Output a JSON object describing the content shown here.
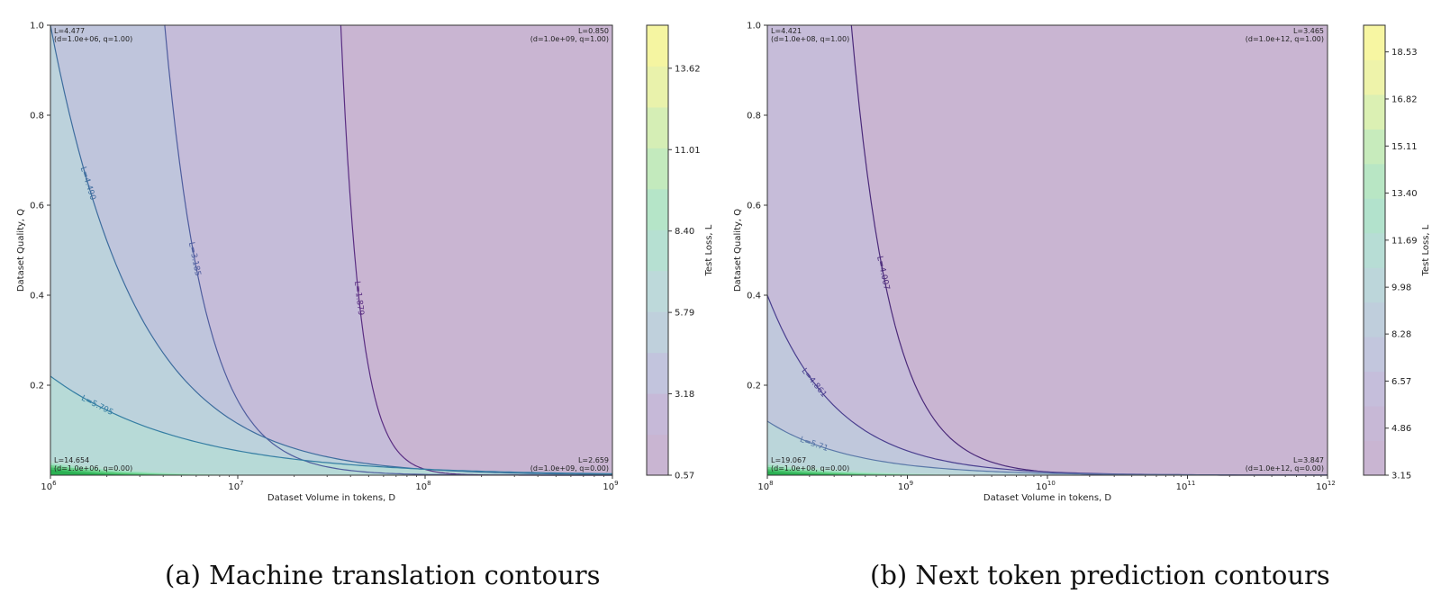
{
  "chart_data": [
    {
      "type": "contour",
      "id": "a",
      "caption": "(a) Machine translation contours",
      "xlabel": "Dataset Volume in tokens, D",
      "ylabel": "Dataset Quality, Q",
      "xscale": "log",
      "xlim": [
        1000000,
        1000000000
      ],
      "ylim": [
        0,
        1.0
      ],
      "x_ticks": [
        {
          "mant": "10",
          "exp": "6"
        },
        {
          "mant": "10",
          "exp": "7"
        },
        {
          "mant": "10",
          "exp": "8"
        },
        {
          "mant": "10",
          "exp": "9"
        }
      ],
      "y_ticks": [
        "0.2",
        "0.4",
        "0.6",
        "0.8",
        "1.0"
      ],
      "colorbar": {
        "label": "Test Loss, L",
        "min": 0.57,
        "max": 15.0,
        "ticks": [
          "0.57",
          "3.18",
          "5.79",
          "8.40",
          "11.01",
          "13.62"
        ]
      },
      "contour_lines": [
        {
          "label": "L=1.879",
          "level": 1.879,
          "x_top_exp": 7.55,
          "exp_rate": 14
        },
        {
          "label": "L=3.185",
          "level": 3.185,
          "x_top_exp": 6.61,
          "exp_rate": 11
        },
        {
          "label": "L=4.490",
          "level": 4.49,
          "x_top_exp": 6.0,
          "exp_rate": 6.5
        },
        {
          "label": "L=5.795",
          "level": 5.795,
          "x_top_exp": 6.0,
          "exp_rate": 4.2,
          "y_start": 0.22
        }
      ],
      "corner_annotations": {
        "top_left": {
          "value": "L=4.477",
          "params": "(d=1.0e+06, q=1.00)"
        },
        "top_right": {
          "value": "L=0.850",
          "params": "(d=1.0e+09, q=1.00)"
        },
        "bottom_left": {
          "value": "L=14.654",
          "params": "(d=1.0e+06, q=0.00)"
        },
        "bottom_right": {
          "value": "L=2.659",
          "params": "(d=1.0e+09, q=0.00)"
        }
      }
    },
    {
      "type": "contour",
      "id": "b",
      "caption": "(b) Next token prediction contours",
      "xlabel": "Dataset Volume in tokens, D",
      "ylabel": "Dataset Quality, Q",
      "xscale": "log",
      "xlim": [
        100000000,
        1000000000000
      ],
      "ylim": [
        0,
        1.0
      ],
      "x_ticks": [
        {
          "mant": "10",
          "exp": "8"
        },
        {
          "mant": "10",
          "exp": "9"
        },
        {
          "mant": "10",
          "exp": "10"
        },
        {
          "mant": "10",
          "exp": "11"
        },
        {
          "mant": "10",
          "exp": "12"
        }
      ],
      "y_ticks": [
        "0.2",
        "0.4",
        "0.6",
        "0.8",
        "1.0"
      ],
      "colorbar": {
        "label": "Test Loss, L",
        "min": 3.15,
        "max": 19.5,
        "ticks": [
          "3.15",
          "4.86",
          "6.57",
          "8.28",
          "9.98",
          "11.69",
          "13.40",
          "15.11",
          "16.82",
          "18.53"
        ]
      },
      "contour_lines": [
        {
          "label": "L=4.007",
          "level": 4.007,
          "x_top_exp": 8.6,
          "exp_rate": 9
        },
        {
          "label": "L=4.861",
          "level": 4.861,
          "x_top_exp": 8.0,
          "exp_rate": 6,
          "y_start": 0.4
        },
        {
          "label": "L=5.71",
          "level": 5.71,
          "x_top_exp": 8.0,
          "exp_rate": 5,
          "y_start": 0.12
        }
      ],
      "corner_annotations": {
        "top_left": {
          "value": "L=4.421",
          "params": "(d=1.0e+08, q=1.00)"
        },
        "top_right": {
          "value": "L=3.465",
          "params": "(d=1.0e+12, q=1.00)"
        },
        "bottom_left": {
          "value": "L=19.067",
          "params": "(d=1.0e+08, q=0.00)"
        },
        "bottom_right": {
          "value": "L=3.847",
          "params": "(d=1.0e+12, q=0.00)"
        }
      }
    }
  ]
}
